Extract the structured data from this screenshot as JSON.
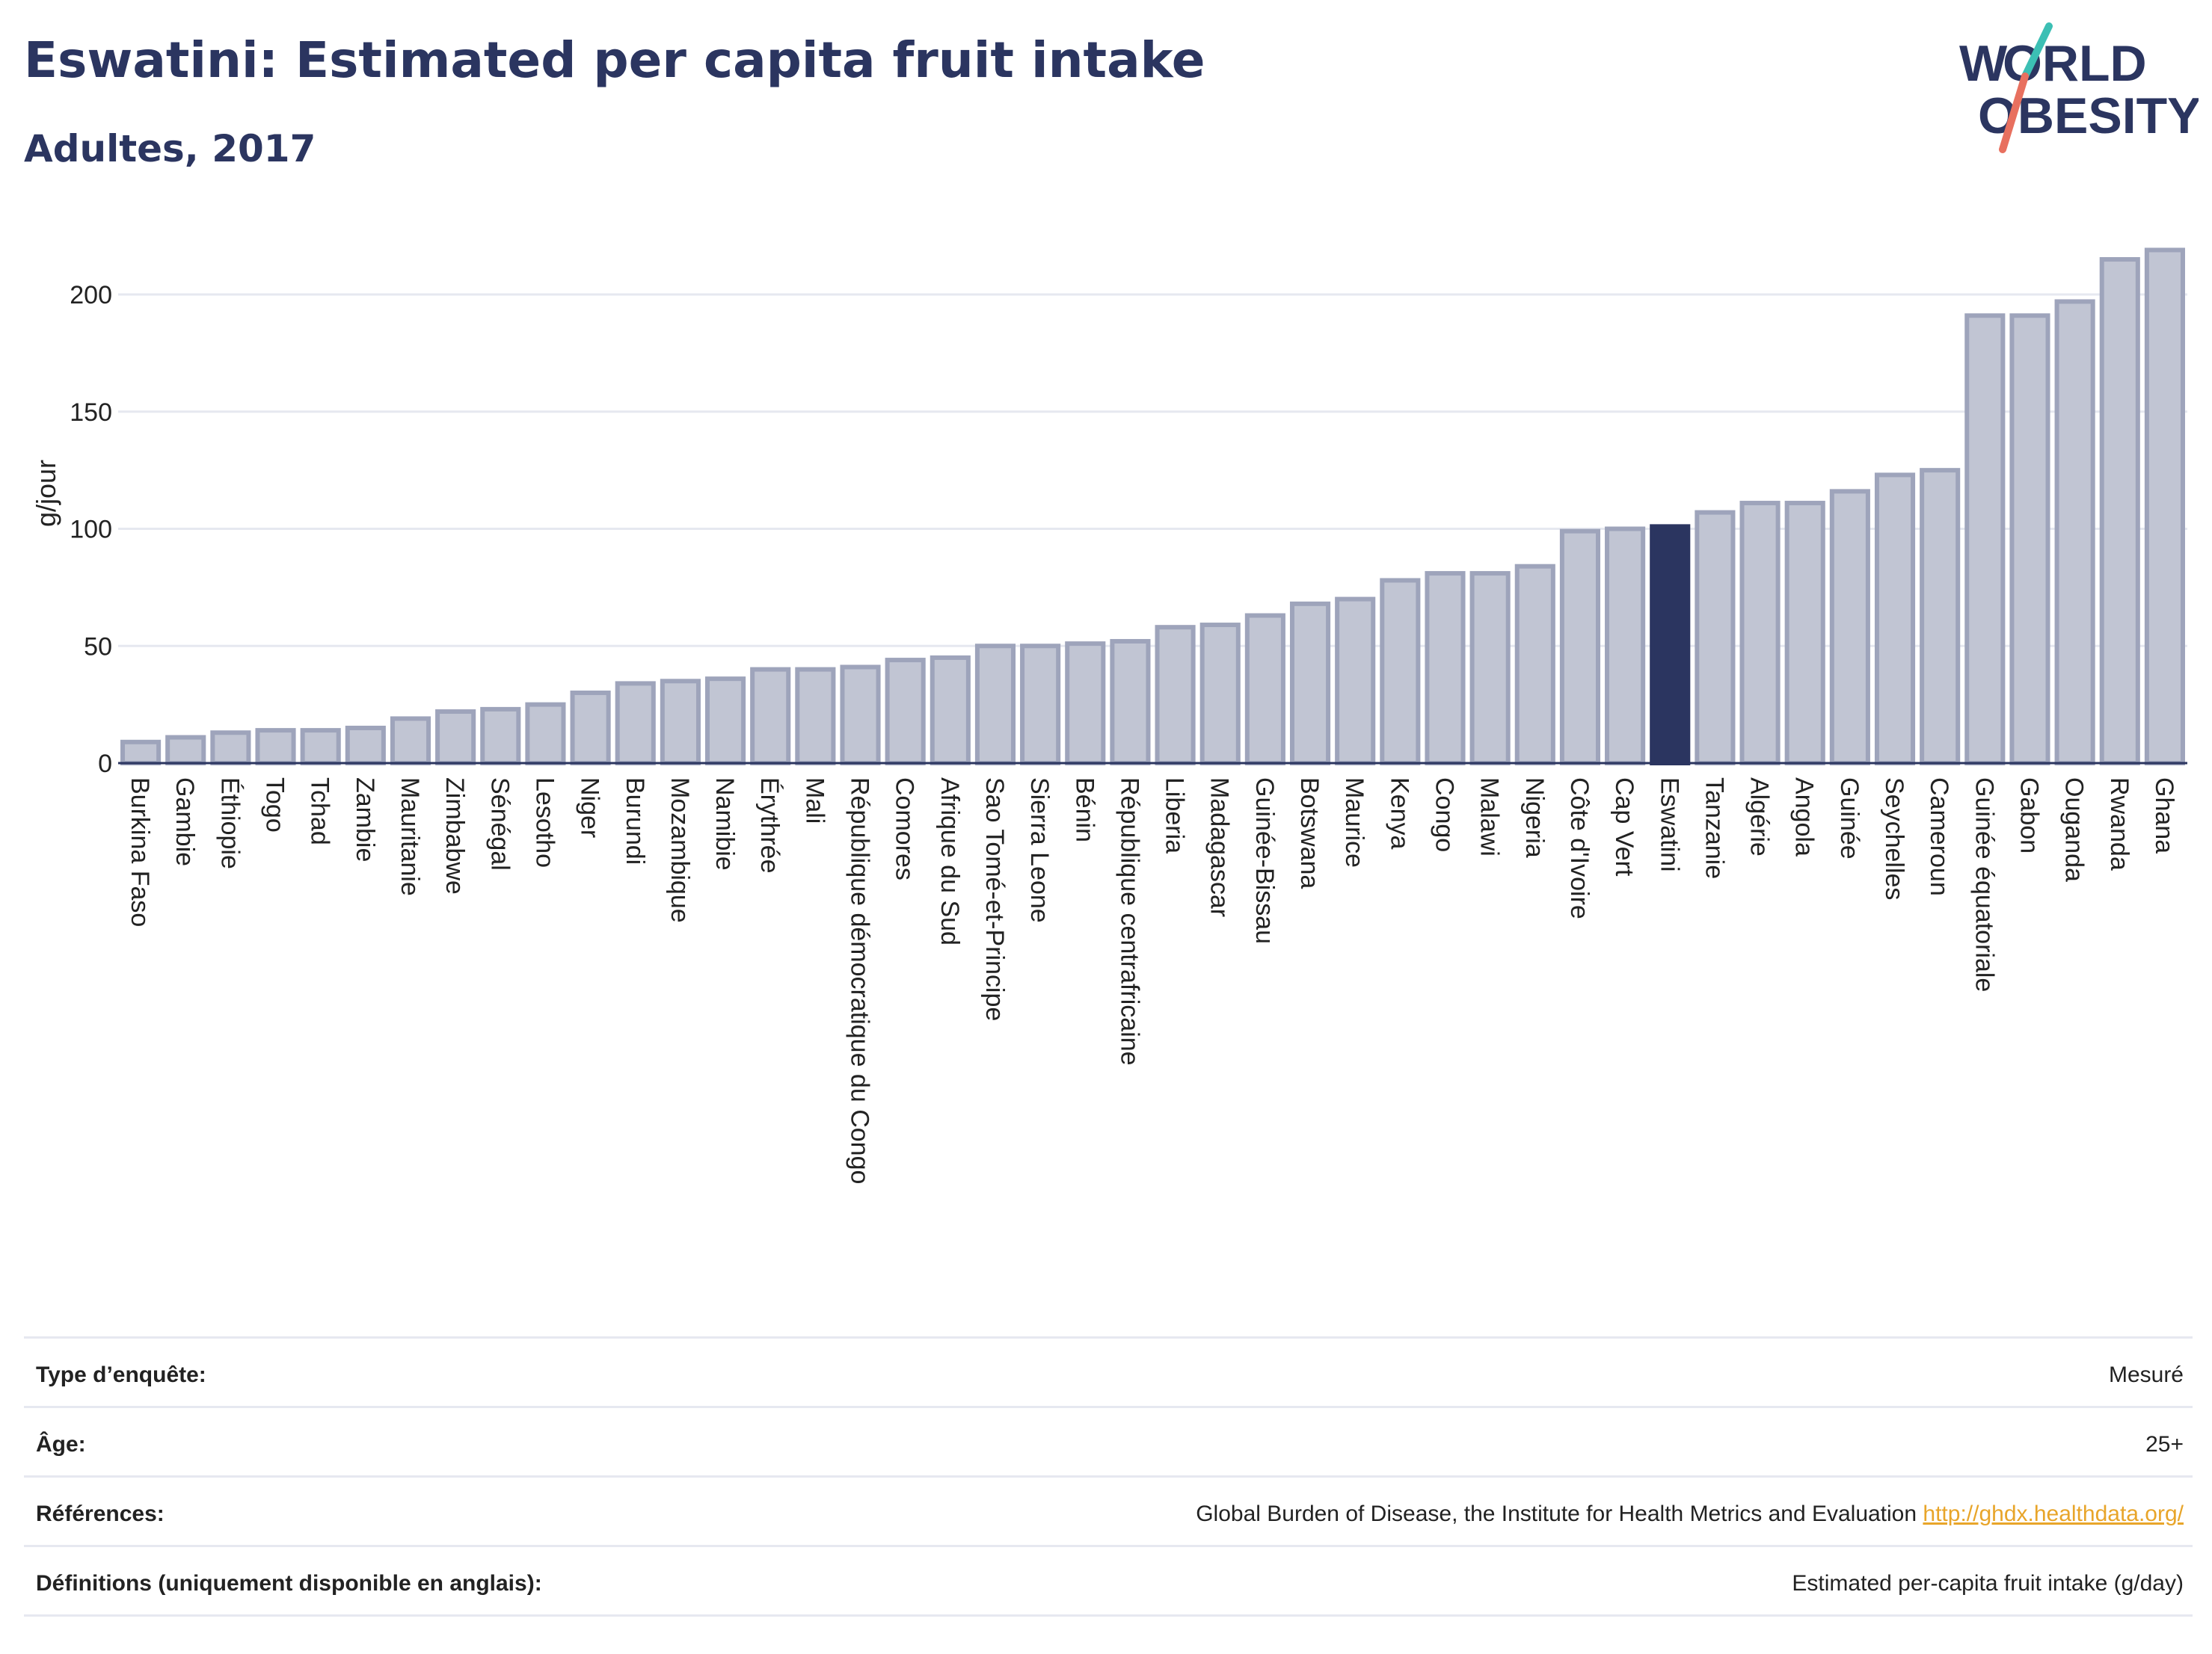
{
  "header": {
    "title": "Eswatini: Estimated per capita fruit intake",
    "subtitle": "Adultes, 2017",
    "logo_text": "WORLD OBESITY"
  },
  "colors": {
    "bar": "#c1c5d3",
    "bar_stroke": "#9ea4bb",
    "highlight": "#2b3560",
    "grid": "#e6e8f0",
    "axis": "#2b3560",
    "link": "#e8a52a",
    "logo_teal": "#3cbfb4",
    "logo_coral": "#e8705f"
  },
  "chart_data": {
    "type": "bar",
    "title": "Eswatini: Estimated per capita fruit intake",
    "subtitle": "Adultes, 2017",
    "ylabel": "g/jour",
    "xlabel": "",
    "ylim": [
      0,
      230
    ],
    "yticks": [
      0,
      50,
      100,
      150,
      200
    ],
    "grid": true,
    "highlight": "Eswatini",
    "categories": [
      "Burkina Faso",
      "Gambie",
      "Éthiopie",
      "Togo",
      "Tchad",
      "Zambie",
      "Mauritanie",
      "Zimbabwe",
      "Sénégal",
      "Lesotho",
      "Niger",
      "Burundi",
      "Mozambique",
      "Namibie",
      "Érythrée",
      "Mali",
      "République démocratique du Congo",
      "Comores",
      "Afrique du Sud",
      "Sao Tomé-et-Principe",
      "Sierra Leone",
      "Bénin",
      "République centrafricaine",
      "Liberia",
      "Madagascar",
      "Guinée-Bissau",
      "Botswana",
      "Maurice",
      "Kenya",
      "Congo",
      "Malawi",
      "Nigeria",
      "Côte d'Ivoire",
      "Cap Vert",
      "Eswatini",
      "Tanzanie",
      "Algérie",
      "Angola",
      "Guinée",
      "Seychelles",
      "Cameroun",
      "Guinée équatoriale",
      "Gabon",
      "Ouganda",
      "Rwanda",
      "Ghana"
    ],
    "values": [
      9,
      11,
      13,
      14,
      14,
      15,
      19,
      22,
      23,
      25,
      30,
      34,
      35,
      36,
      40,
      40,
      41,
      44,
      45,
      50,
      50,
      51,
      52,
      58,
      59,
      63,
      68,
      70,
      78,
      81,
      81,
      84,
      99,
      100,
      101,
      107,
      111,
      111,
      116,
      123,
      125,
      191,
      191,
      197,
      215,
      219
    ]
  },
  "info": {
    "rows": [
      {
        "label": "Type d’enquête:",
        "value": "Mesuré"
      },
      {
        "label": "Âge:",
        "value": "25+"
      },
      {
        "label": "Références:",
        "value": "Global Burden of Disease, the Institute for Health Metrics and Evaluation",
        "link": "http://ghdx.healthdata.org/"
      },
      {
        "label": "Définitions (uniquement disponible en anglais):",
        "value": "Estimated per-capita fruit intake (g/day)"
      }
    ]
  }
}
